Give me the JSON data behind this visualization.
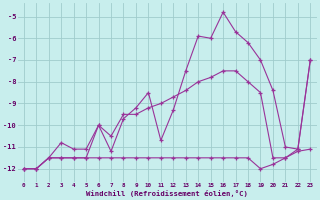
{
  "xlabel": "Windchill (Refroidissement éolien,°C)",
  "bg_color": "#c8eeed",
  "grid_color": "#a0cccc",
  "line_color": "#993399",
  "xlim": [
    -0.5,
    23.5
  ],
  "ylim": [
    -12.6,
    -4.4
  ],
  "yticks": [
    -12,
    -11,
    -10,
    -9,
    -8,
    -7,
    -6,
    -5
  ],
  "xticks": [
    0,
    1,
    2,
    3,
    4,
    5,
    6,
    7,
    8,
    9,
    10,
    11,
    12,
    13,
    14,
    15,
    16,
    17,
    18,
    19,
    20,
    21,
    22,
    23
  ],
  "line1_x": [
    0,
    1,
    2,
    3,
    4,
    5,
    6,
    7,
    8,
    9,
    10,
    11,
    12,
    13,
    14,
    15,
    16,
    17,
    18,
    19,
    20,
    21,
    22,
    23
  ],
  "line1_y": [
    -12.0,
    -12.0,
    -11.5,
    -11.5,
    -11.5,
    -11.5,
    -11.5,
    -11.5,
    -11.5,
    -11.5,
    -11.5,
    -11.5,
    -11.5,
    -11.5,
    -11.5,
    -11.5,
    -11.5,
    -11.5,
    -11.5,
    -12.0,
    -11.8,
    -11.5,
    -11.2,
    -11.1
  ],
  "line2_x": [
    0,
    1,
    2,
    3,
    4,
    5,
    6,
    7,
    8,
    9,
    10,
    11,
    12,
    13,
    14,
    15,
    16,
    17,
    18,
    19,
    20,
    21,
    22,
    23
  ],
  "line2_y": [
    -12.0,
    -12.0,
    -11.5,
    -10.8,
    -11.1,
    -11.1,
    -10.0,
    -11.2,
    -9.7,
    -9.2,
    -8.5,
    -10.7,
    -9.3,
    -7.5,
    -5.9,
    -6.0,
    -4.8,
    -5.7,
    -6.2,
    -7.0,
    -8.4,
    -11.0,
    -11.1,
    -7.0
  ],
  "line3_x": [
    0,
    1,
    2,
    3,
    4,
    5,
    6,
    7,
    8,
    9,
    10,
    11,
    12,
    13,
    14,
    15,
    16,
    17,
    18,
    19,
    20,
    21,
    22,
    23
  ],
  "line3_y": [
    -12.0,
    -12.0,
    -11.5,
    -11.5,
    -11.5,
    -11.5,
    -10.0,
    -10.5,
    -9.5,
    -9.5,
    -9.2,
    -9.0,
    -8.7,
    -8.4,
    -8.0,
    -7.8,
    -7.5,
    -7.5,
    -8.0,
    -8.5,
    -11.5,
    -11.5,
    -11.1,
    -7.0
  ]
}
